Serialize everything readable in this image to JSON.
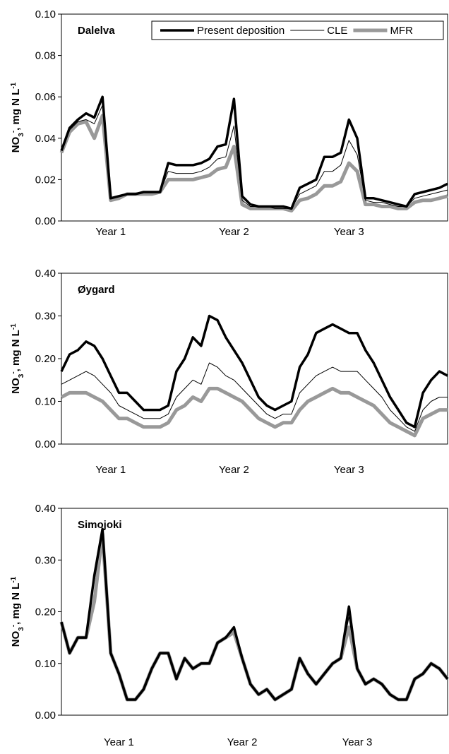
{
  "chart_data": [
    {
      "type": "line",
      "title": "Dalelva",
      "ylabel": [
        "NO",
        "3",
        "-",
        ", mg N L",
        "-1"
      ],
      "categories": [
        null,
        null,
        null,
        null,
        null,
        null,
        "Year 1",
        null,
        null,
        null,
        null,
        null,
        null,
        null,
        null,
        null,
        null,
        null,
        null,
        null,
        null,
        "Year 2",
        null,
        null,
        null,
        null,
        null,
        null,
        null,
        null,
        null,
        null,
        null,
        null,
        null,
        "Year 3",
        null,
        null,
        null,
        null,
        null,
        null,
        null,
        null,
        null,
        null,
        null,
        null
      ],
      "ylim": [
        0,
        0.1
      ],
      "yticks": [
        {
          "value": 0,
          "label": "0.00"
        },
        {
          "value": 0.02,
          "label": "0.02"
        },
        {
          "value": 0.04,
          "label": "0.04"
        },
        {
          "value": 0.06,
          "label": "0.06"
        },
        {
          "value": 0.08,
          "label": "0.08"
        },
        {
          "value": 0.1,
          "label": "0.10"
        }
      ],
      "legend": "top-right",
      "series": [
        {
          "name": "Present deposition",
          "color": "#000000",
          "width": 3.5,
          "values": [
            0.034,
            0.045,
            0.049,
            0.052,
            0.05,
            0.06,
            0.011,
            0.012,
            0.013,
            0.013,
            0.014,
            0.014,
            0.014,
            0.028,
            0.027,
            0.027,
            0.027,
            0.028,
            0.03,
            0.036,
            0.037,
            0.059,
            0.012,
            0.008,
            0.007,
            0.007,
            0.007,
            0.007,
            0.006,
            0.016,
            0.018,
            0.02,
            0.031,
            0.031,
            0.033,
            0.049,
            0.04,
            0.011,
            0.011,
            0.01,
            0.009,
            0.008,
            0.007,
            0.013,
            0.014,
            0.015,
            0.016,
            0.018
          ]
        },
        {
          "name": "CLE",
          "color": "#000000",
          "width": 1,
          "values": [
            0.034,
            0.044,
            0.048,
            0.049,
            0.047,
            0.056,
            0.011,
            0.012,
            0.013,
            0.013,
            0.014,
            0.014,
            0.014,
            0.024,
            0.023,
            0.023,
            0.023,
            0.024,
            0.026,
            0.03,
            0.031,
            0.046,
            0.01,
            0.007,
            0.007,
            0.007,
            0.006,
            0.006,
            0.006,
            0.013,
            0.015,
            0.017,
            0.024,
            0.024,
            0.027,
            0.039,
            0.032,
            0.01,
            0.009,
            0.009,
            0.008,
            0.007,
            0.007,
            0.011,
            0.012,
            0.013,
            0.014,
            0.015
          ]
        },
        {
          "name": "MFR",
          "color": "#999999",
          "width": 5,
          "values": [
            0.033,
            0.043,
            0.047,
            0.048,
            0.04,
            0.051,
            0.01,
            0.011,
            0.013,
            0.013,
            0.013,
            0.013,
            0.014,
            0.02,
            0.02,
            0.02,
            0.02,
            0.021,
            0.022,
            0.025,
            0.026,
            0.036,
            0.008,
            0.006,
            0.006,
            0.006,
            0.006,
            0.006,
            0.005,
            0.01,
            0.011,
            0.013,
            0.017,
            0.017,
            0.019,
            0.028,
            0.024,
            0.008,
            0.008,
            0.007,
            0.007,
            0.006,
            0.006,
            0.009,
            0.01,
            0.01,
            0.011,
            0.012
          ]
        }
      ]
    },
    {
      "type": "line",
      "title": "Øygard",
      "ylabel": [
        "NO",
        "3",
        "-",
        ", mg N L",
        "-1"
      ],
      "categories": [
        null,
        null,
        null,
        null,
        null,
        null,
        "Year 1",
        null,
        null,
        null,
        null,
        null,
        null,
        null,
        null,
        null,
        null,
        null,
        null,
        null,
        null,
        "Year 2",
        null,
        null,
        null,
        null,
        null,
        null,
        null,
        null,
        null,
        null,
        null,
        null,
        null,
        "Year 3",
        null,
        null,
        null,
        null,
        null,
        null,
        null,
        null,
        null,
        null,
        null,
        null
      ],
      "ylim": [
        0,
        0.4
      ],
      "yticks": [
        {
          "value": 0,
          "label": "0.00"
        },
        {
          "value": 0.1,
          "label": "0.10"
        },
        {
          "value": 0.2,
          "label": "0.20"
        },
        {
          "value": 0.3,
          "label": "0.30"
        },
        {
          "value": 0.4,
          "label": "0.40"
        }
      ],
      "series": [
        {
          "color": "#000000",
          "width": 3.5,
          "values": [
            0.17,
            0.21,
            0.22,
            0.24,
            0.23,
            0.2,
            0.16,
            0.12,
            0.12,
            0.1,
            0.08,
            0.08,
            0.08,
            0.09,
            0.17,
            0.2,
            0.25,
            0.23,
            0.3,
            0.29,
            0.25,
            0.22,
            0.19,
            0.15,
            0.11,
            0.09,
            0.08,
            0.09,
            0.1,
            0.18,
            0.21,
            0.26,
            0.27,
            0.28,
            0.27,
            0.26,
            0.26,
            0.22,
            0.19,
            0.15,
            0.11,
            0.08,
            0.05,
            0.04,
            0.12,
            0.15,
            0.17,
            0.16
          ]
        },
        {
          "color": "#000000",
          "width": 1,
          "values": [
            0.14,
            0.15,
            0.16,
            0.17,
            0.16,
            0.14,
            0.12,
            0.09,
            0.08,
            0.07,
            0.06,
            0.06,
            0.06,
            0.07,
            0.11,
            0.13,
            0.15,
            0.14,
            0.19,
            0.18,
            0.16,
            0.15,
            0.13,
            0.11,
            0.09,
            0.07,
            0.06,
            0.07,
            0.07,
            0.12,
            0.14,
            0.16,
            0.17,
            0.18,
            0.17,
            0.17,
            0.17,
            0.15,
            0.13,
            0.11,
            0.08,
            0.06,
            0.04,
            0.03,
            0.08,
            0.1,
            0.11,
            0.11
          ]
        },
        {
          "color": "#999999",
          "width": 5,
          "values": [
            0.11,
            0.12,
            0.12,
            0.12,
            0.11,
            0.1,
            0.08,
            0.06,
            0.06,
            0.05,
            0.04,
            0.04,
            0.04,
            0.05,
            0.08,
            0.09,
            0.11,
            0.1,
            0.13,
            0.13,
            0.12,
            0.11,
            0.1,
            0.08,
            0.06,
            0.05,
            0.04,
            0.05,
            0.05,
            0.08,
            0.1,
            0.11,
            0.12,
            0.13,
            0.12,
            0.12,
            0.11,
            0.1,
            0.09,
            0.07,
            0.05,
            0.04,
            0.03,
            0.02,
            0.06,
            0.07,
            0.08,
            0.08
          ]
        }
      ]
    },
    {
      "type": "line",
      "title": "Simojoki",
      "ylabel": [
        "NO",
        "3",
        "-",
        ", mg N L",
        "-1"
      ],
      "categories": [
        null,
        null,
        null,
        null,
        null,
        null,
        null,
        "Year 1",
        null,
        null,
        null,
        null,
        null,
        null,
        null,
        null,
        null,
        null,
        null,
        null,
        null,
        null,
        "Year 2",
        null,
        null,
        null,
        null,
        null,
        null,
        null,
        null,
        null,
        null,
        null,
        null,
        null,
        "Year 3",
        null,
        null,
        null,
        null,
        null,
        null,
        null,
        null,
        null,
        null,
        null
      ],
      "ylim": [
        0,
        0.4
      ],
      "yticks": [
        {
          "value": 0,
          "label": "0.00"
        },
        {
          "value": 0.1,
          "label": "0.10"
        },
        {
          "value": 0.2,
          "label": "0.20"
        },
        {
          "value": 0.3,
          "label": "0.30"
        },
        {
          "value": 0.4,
          "label": "0.40"
        }
      ],
      "series": [
        {
          "color": "#000000",
          "width": 3.5,
          "values": [
            0.18,
            0.12,
            0.15,
            0.15,
            0.27,
            0.36,
            0.12,
            0.08,
            0.03,
            0.03,
            0.05,
            0.09,
            0.12,
            0.12,
            0.07,
            0.11,
            0.09,
            0.1,
            0.1,
            0.14,
            0.15,
            0.17,
            0.11,
            0.06,
            0.04,
            0.05,
            0.03,
            0.04,
            0.05,
            0.11,
            0.08,
            0.06,
            0.08,
            0.1,
            0.11,
            0.21,
            0.09,
            0.06,
            0.07,
            0.06,
            0.04,
            0.03,
            0.03,
            0.07,
            0.08,
            0.1,
            0.09,
            0.07
          ]
        },
        {
          "color": "#000000",
          "width": 1,
          "values": [
            0.18,
            0.12,
            0.15,
            0.15,
            0.26,
            0.35,
            0.12,
            0.08,
            0.03,
            0.03,
            0.05,
            0.09,
            0.12,
            0.12,
            0.07,
            0.11,
            0.09,
            0.1,
            0.1,
            0.14,
            0.15,
            0.17,
            0.11,
            0.06,
            0.04,
            0.05,
            0.03,
            0.04,
            0.05,
            0.11,
            0.08,
            0.06,
            0.08,
            0.1,
            0.11,
            0.19,
            0.09,
            0.06,
            0.07,
            0.06,
            0.04,
            0.03,
            0.03,
            0.07,
            0.08,
            0.1,
            0.09,
            0.07
          ]
        },
        {
          "color": "#999999",
          "width": 5,
          "values": [
            0.18,
            0.12,
            0.15,
            0.15,
            0.22,
            0.35,
            0.12,
            0.08,
            0.03,
            0.03,
            0.05,
            0.09,
            0.12,
            0.12,
            0.07,
            0.11,
            0.09,
            0.1,
            0.1,
            0.14,
            0.15,
            0.16,
            0.11,
            0.06,
            0.04,
            0.05,
            0.03,
            0.04,
            0.05,
            0.11,
            0.08,
            0.06,
            0.08,
            0.1,
            0.11,
            0.17,
            0.09,
            0.06,
            0.07,
            0.06,
            0.04,
            0.03,
            0.03,
            0.07,
            0.08,
            0.1,
            0.09,
            0.07
          ]
        }
      ]
    }
  ]
}
